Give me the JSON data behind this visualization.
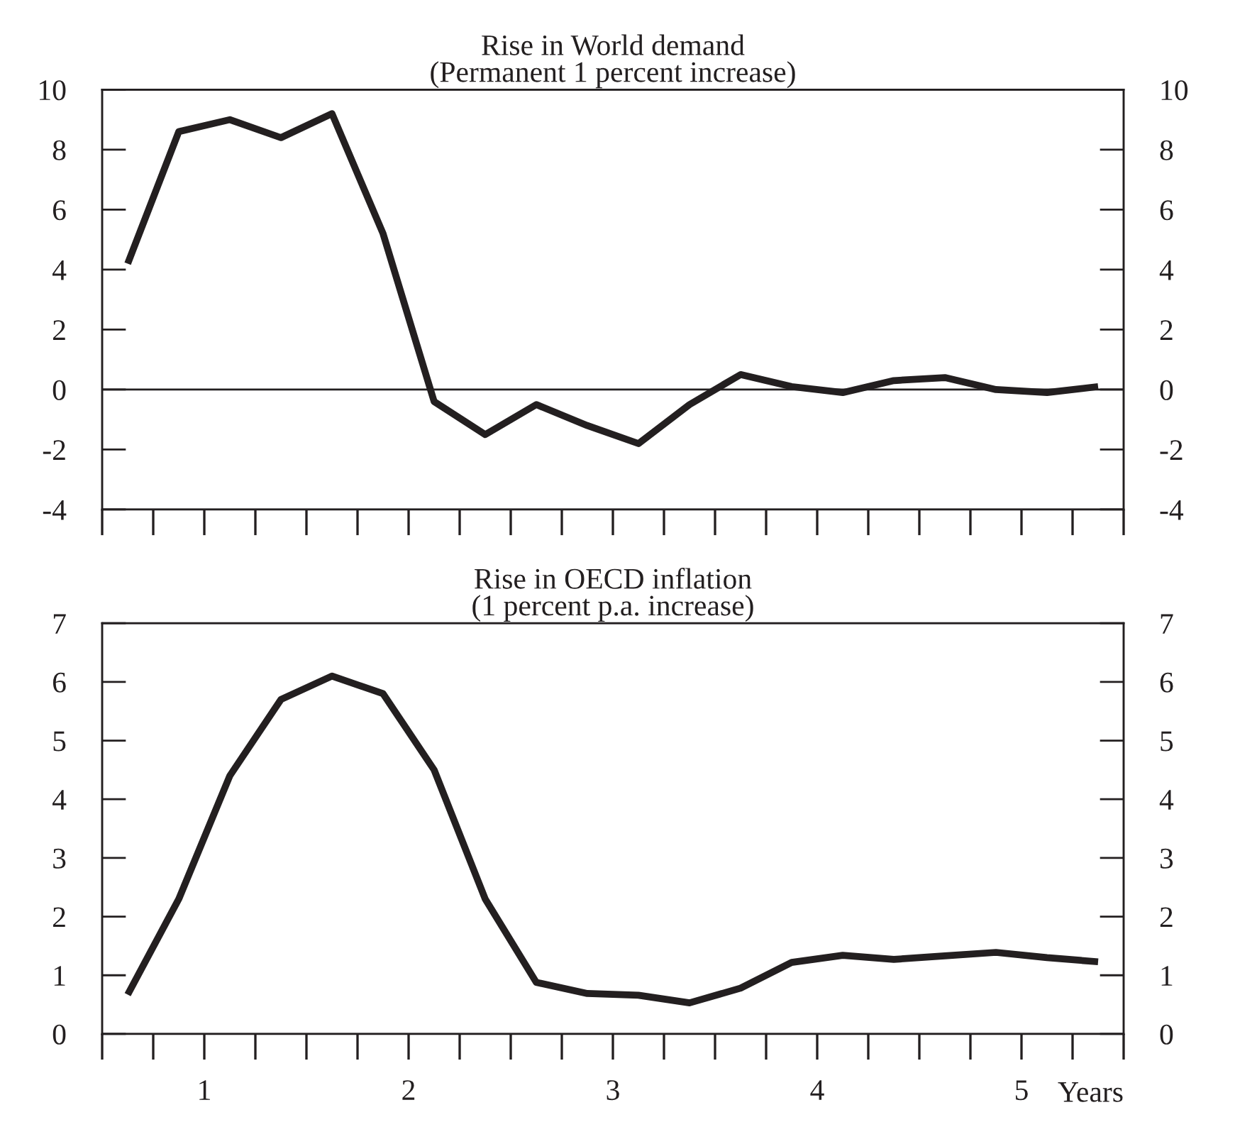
{
  "chart_data": [
    {
      "type": "line",
      "title": "Rise in World demand",
      "subtitle": "(Permanent 1 percent increase)",
      "x": [
        0.625,
        0.875,
        1.125,
        1.375,
        1.625,
        1.875,
        2.125,
        2.375,
        2.625,
        2.875,
        3.125,
        3.375,
        3.625,
        3.875,
        4.125,
        4.375,
        4.625,
        4.875,
        5.125,
        5.375
      ],
      "series": [
        {
          "color": "#231f20",
          "values": [
            4.2,
            8.6,
            9.0,
            8.4,
            9.2,
            5.2,
            -0.4,
            -1.5,
            -0.5,
            -1.2,
            -1.8,
            -0.5,
            0.5,
            0.1,
            -0.1,
            0.3,
            0.4,
            0.0,
            -0.1,
            0.1
          ]
        }
      ],
      "xlim": [
        0.5,
        5.5
      ],
      "xticks": [
        {
          "value": 1,
          "label": null
        },
        {
          "value": 2,
          "label": null
        },
        {
          "value": 3,
          "label": null
        },
        {
          "value": 4,
          "label": null
        },
        {
          "value": 5,
          "label": null
        }
      ],
      "ylim": [
        -4,
        10
      ],
      "yticks": [
        -4,
        -2,
        0,
        2,
        4,
        6,
        8,
        10
      ],
      "y2lim": [
        -4,
        10
      ],
      "y2ticks": [
        -4,
        -2,
        0,
        2,
        4,
        6,
        8,
        10
      ],
      "ref_lines": [
        {
          "axis": "y",
          "value": 0,
          "color": "#231f20"
        }
      ],
      "tick_labels": "y",
      "grid": false,
      "legend": false
    },
    {
      "type": "line",
      "title": "Rise in OECD inflation",
      "subtitle": "(1 percent p.a. increase)",
      "xlabel": "Years",
      "x": [
        0.625,
        0.875,
        1.125,
        1.375,
        1.625,
        1.875,
        2.125,
        2.375,
        2.625,
        2.875,
        3.125,
        3.375,
        3.625,
        3.875,
        4.125,
        4.375,
        4.625,
        4.875,
        5.125,
        5.375
      ],
      "series": [
        {
          "color": "#231f20",
          "values": [
            0.67,
            2.3,
            4.4,
            5.7,
            6.1,
            5.8,
            4.5,
            2.3,
            0.88,
            0.69,
            0.66,
            0.53,
            0.78,
            1.22,
            1.34,
            1.27,
            1.33,
            1.39,
            1.3,
            1.23
          ]
        }
      ],
      "xlim": [
        0.5,
        5.5
      ],
      "xticks": [
        1,
        2,
        3,
        4,
        5
      ],
      "ylim": [
        0,
        7
      ],
      "yticks": [
        0,
        1,
        2,
        3,
        4,
        5,
        6,
        7
      ],
      "y2lim": [
        0,
        7
      ],
      "y2ticks": [
        0,
        1,
        2,
        3,
        4,
        5,
        6,
        7
      ],
      "grid": false,
      "legend": false
    }
  ]
}
